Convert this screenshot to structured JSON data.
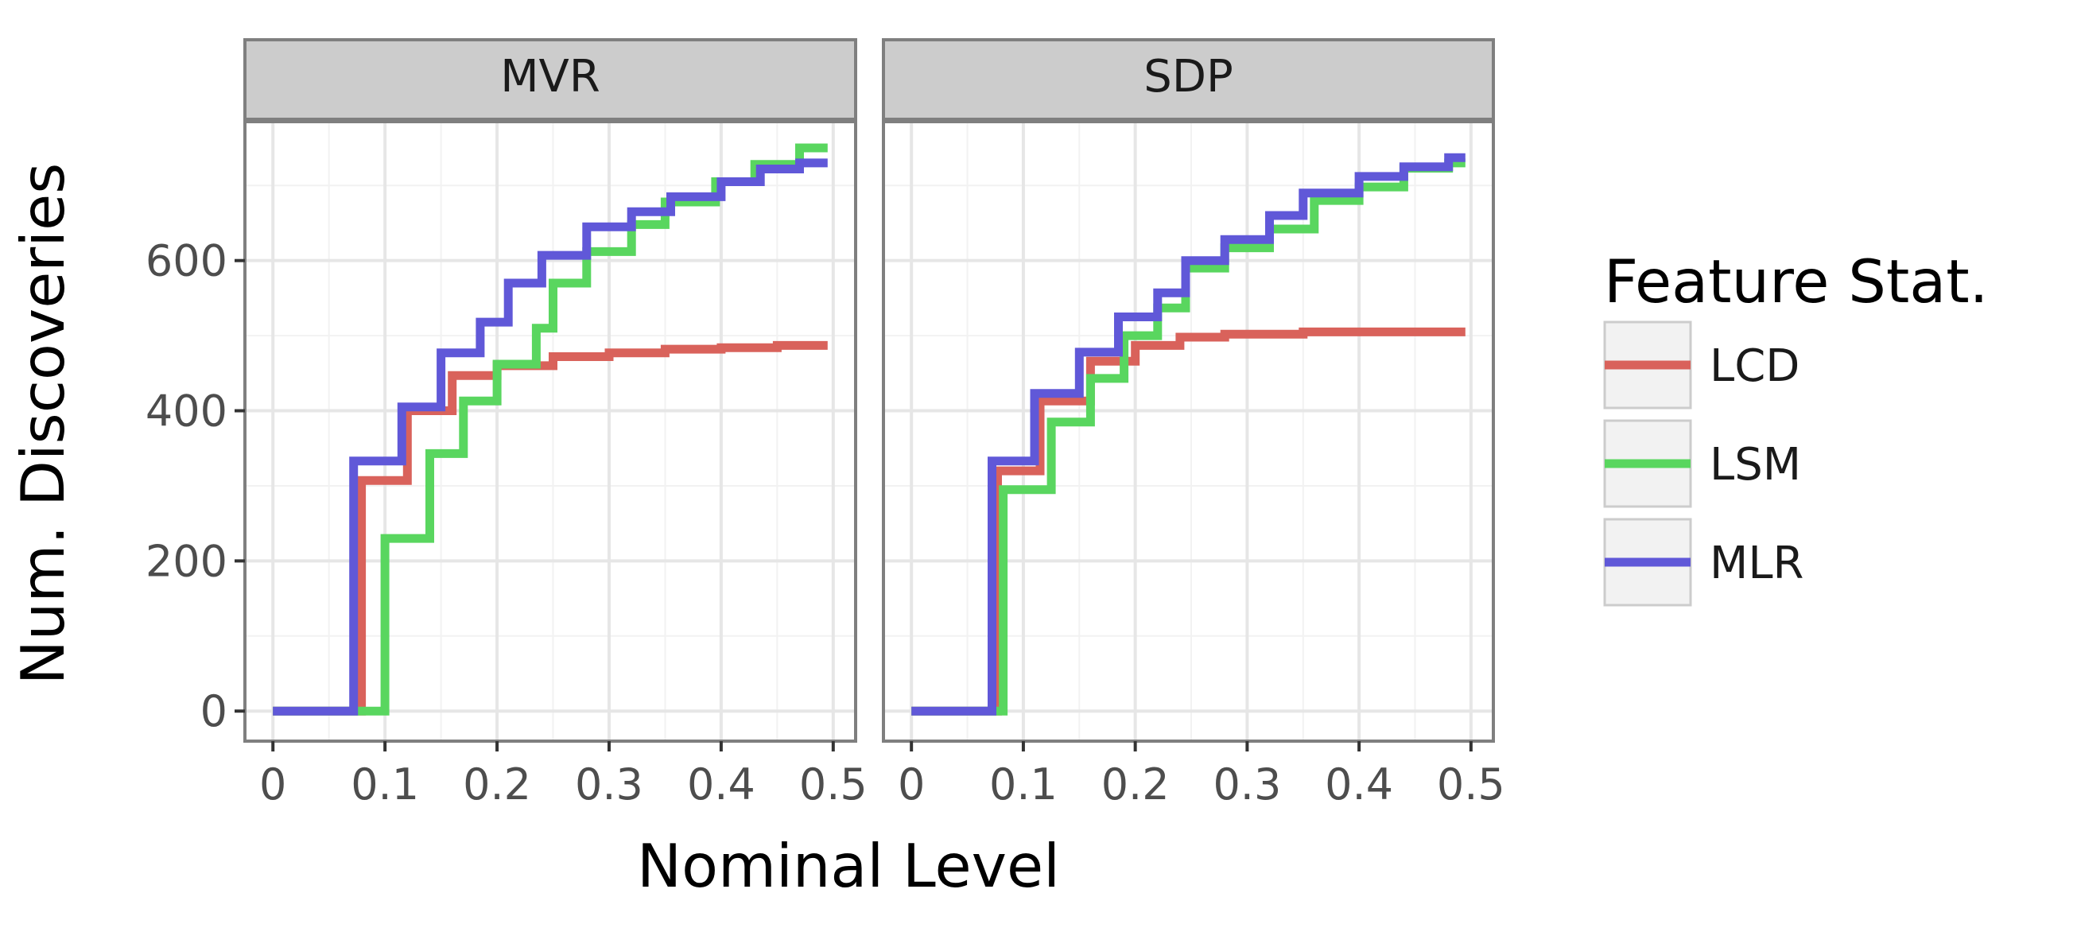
{
  "chart_data": {
    "type": "line",
    "step": true,
    "xlabel": "Nominal Level",
    "ylabel": "Num. Discoveries",
    "xlim": [
      -0.025,
      0.52
    ],
    "ylim": [
      -40,
      785
    ],
    "x_ticks": [
      0,
      0.1,
      0.2,
      0.3,
      0.4,
      0.5
    ],
    "x_tick_labels": [
      "0",
      "0.1",
      "0.2",
      "0.3",
      "0.4",
      "0.5"
    ],
    "y_ticks": [
      0,
      200,
      400,
      600
    ],
    "y_tick_labels": [
      "0",
      "200",
      "400",
      "600"
    ],
    "grid": true,
    "legend": {
      "title": "Feature Stat.",
      "position": "right",
      "entries": [
        {
          "label": "LCD",
          "color": "#D9625B"
        },
        {
          "label": "LSM",
          "color": "#59D65F"
        },
        {
          "label": "MLR",
          "color": "#6058D8"
        }
      ]
    },
    "panels": [
      {
        "title": "MVR",
        "series": [
          {
            "name": "LCD",
            "color": "#D9625B",
            "points": [
              [
                0,
                0
              ],
              [
                0.079,
                0
              ],
              [
                0.079,
                307
              ],
              [
                0.12,
                307
              ],
              [
                0.12,
                400
              ],
              [
                0.16,
                400
              ],
              [
                0.16,
                447
              ],
              [
                0.2,
                447
              ],
              [
                0.2,
                460
              ],
              [
                0.25,
                460
              ],
              [
                0.25,
                472
              ],
              [
                0.3,
                472
              ],
              [
                0.3,
                477
              ],
              [
                0.35,
                477
              ],
              [
                0.35,
                482
              ],
              [
                0.4,
                482
              ],
              [
                0.4,
                484
              ],
              [
                0.45,
                484
              ],
              [
                0.45,
                487
              ],
              [
                0.495,
                487
              ]
            ]
          },
          {
            "name": "LSM",
            "color": "#59D65F",
            "points": [
              [
                0,
                0
              ],
              [
                0.1,
                0
              ],
              [
                0.1,
                230
              ],
              [
                0.14,
                230
              ],
              [
                0.14,
                343
              ],
              [
                0.17,
                343
              ],
              [
                0.17,
                413
              ],
              [
                0.2,
                413
              ],
              [
                0.2,
                462
              ],
              [
                0.235,
                462
              ],
              [
                0.235,
                510
              ],
              [
                0.25,
                510
              ],
              [
                0.25,
                570
              ],
              [
                0.28,
                570
              ],
              [
                0.28,
                612
              ],
              [
                0.32,
                612
              ],
              [
                0.32,
                648
              ],
              [
                0.35,
                648
              ],
              [
                0.35,
                678
              ],
              [
                0.395,
                678
              ],
              [
                0.395,
                705
              ],
              [
                0.43,
                705
              ],
              [
                0.43,
                728
              ],
              [
                0.47,
                728
              ],
              [
                0.47,
                750
              ],
              [
                0.495,
                750
              ]
            ]
          },
          {
            "name": "MLR",
            "color": "#6058D8",
            "points": [
              [
                0,
                0
              ],
              [
                0.072,
                0
              ],
              [
                0.072,
                333
              ],
              [
                0.115,
                333
              ],
              [
                0.115,
                405
              ],
              [
                0.15,
                405
              ],
              [
                0.15,
                477
              ],
              [
                0.185,
                477
              ],
              [
                0.185,
                518
              ],
              [
                0.21,
                518
              ],
              [
                0.21,
                570
              ],
              [
                0.24,
                570
              ],
              [
                0.24,
                607
              ],
              [
                0.28,
                607
              ],
              [
                0.28,
                645
              ],
              [
                0.32,
                645
              ],
              [
                0.32,
                665
              ],
              [
                0.355,
                665
              ],
              [
                0.355,
                685
              ],
              [
                0.4,
                685
              ],
              [
                0.4,
                705
              ],
              [
                0.435,
                705
              ],
              [
                0.435,
                722
              ],
              [
                0.47,
                722
              ],
              [
                0.47,
                730
              ],
              [
                0.495,
                730
              ]
            ]
          }
        ]
      },
      {
        "title": "SDP",
        "series": [
          {
            "name": "LCD",
            "color": "#D9625B",
            "points": [
              [
                0,
                0
              ],
              [
                0.077,
                0
              ],
              [
                0.077,
                320
              ],
              [
                0.115,
                320
              ],
              [
                0.115,
                413
              ],
              [
                0.16,
                413
              ],
              [
                0.16,
                466
              ],
              [
                0.2,
                466
              ],
              [
                0.2,
                487
              ],
              [
                0.24,
                487
              ],
              [
                0.24,
                498
              ],
              [
                0.28,
                498
              ],
              [
                0.28,
                502
              ],
              [
                0.35,
                502
              ],
              [
                0.35,
                505
              ],
              [
                0.495,
                505
              ]
            ]
          },
          {
            "name": "LSM",
            "color": "#59D65F",
            "points": [
              [
                0,
                0
              ],
              [
                0.082,
                0
              ],
              [
                0.082,
                295
              ],
              [
                0.125,
                295
              ],
              [
                0.125,
                385
              ],
              [
                0.16,
                385
              ],
              [
                0.16,
                443
              ],
              [
                0.19,
                443
              ],
              [
                0.19,
                500
              ],
              [
                0.22,
                500
              ],
              [
                0.22,
                537
              ],
              [
                0.245,
                537
              ],
              [
                0.245,
                590
              ],
              [
                0.28,
                590
              ],
              [
                0.28,
                617
              ],
              [
                0.32,
                617
              ],
              [
                0.32,
                642
              ],
              [
                0.36,
                642
              ],
              [
                0.36,
                680
              ],
              [
                0.4,
                680
              ],
              [
                0.4,
                698
              ],
              [
                0.44,
                698
              ],
              [
                0.44,
                723
              ],
              [
                0.48,
                723
              ],
              [
                0.48,
                730
              ],
              [
                0.495,
                730
              ]
            ]
          },
          {
            "name": "MLR",
            "color": "#6058D8",
            "points": [
              [
                0,
                0
              ],
              [
                0.072,
                0
              ],
              [
                0.072,
                333
              ],
              [
                0.11,
                333
              ],
              [
                0.11,
                423
              ],
              [
                0.15,
                423
              ],
              [
                0.15,
                478
              ],
              [
                0.185,
                478
              ],
              [
                0.185,
                525
              ],
              [
                0.22,
                525
              ],
              [
                0.22,
                557
              ],
              [
                0.245,
                557
              ],
              [
                0.245,
                600
              ],
              [
                0.28,
                600
              ],
              [
                0.28,
                628
              ],
              [
                0.32,
                628
              ],
              [
                0.32,
                660
              ],
              [
                0.35,
                660
              ],
              [
                0.35,
                690
              ],
              [
                0.4,
                690
              ],
              [
                0.4,
                712
              ],
              [
                0.44,
                712
              ],
              [
                0.44,
                725
              ],
              [
                0.48,
                725
              ],
              [
                0.48,
                737
              ],
              [
                0.495,
                737
              ]
            ]
          }
        ]
      }
    ]
  }
}
